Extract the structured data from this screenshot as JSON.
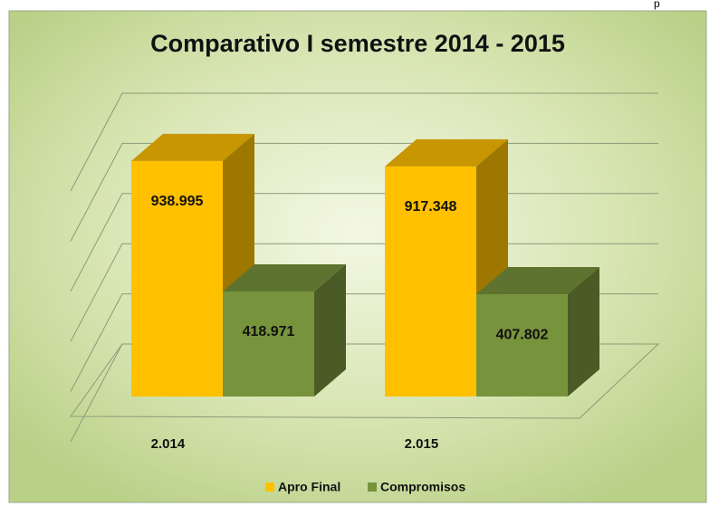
{
  "corner_text": "p",
  "chart_data": {
    "type": "bar3d",
    "title": "Comparativo I semestre 2014 - 2015",
    "categories": [
      "2.014",
      "2.015"
    ],
    "series": [
      {
        "name": "Apro Final",
        "color": "#FFC000",
        "values": [
          938995,
          917348
        ],
        "value_labels": [
          "938.995",
          "917.348"
        ]
      },
      {
        "name": "Compromisos",
        "color": "#77933C",
        "values": [
          418971,
          407802
        ],
        "value_labels": [
          "418.971",
          "407.802"
        ]
      }
    ],
    "ylim": [
      0,
      1000000
    ],
    "yticks": [
      0,
      200000,
      400000,
      600000,
      800000,
      1000000
    ],
    "grid": true,
    "legend": "bottom"
  }
}
